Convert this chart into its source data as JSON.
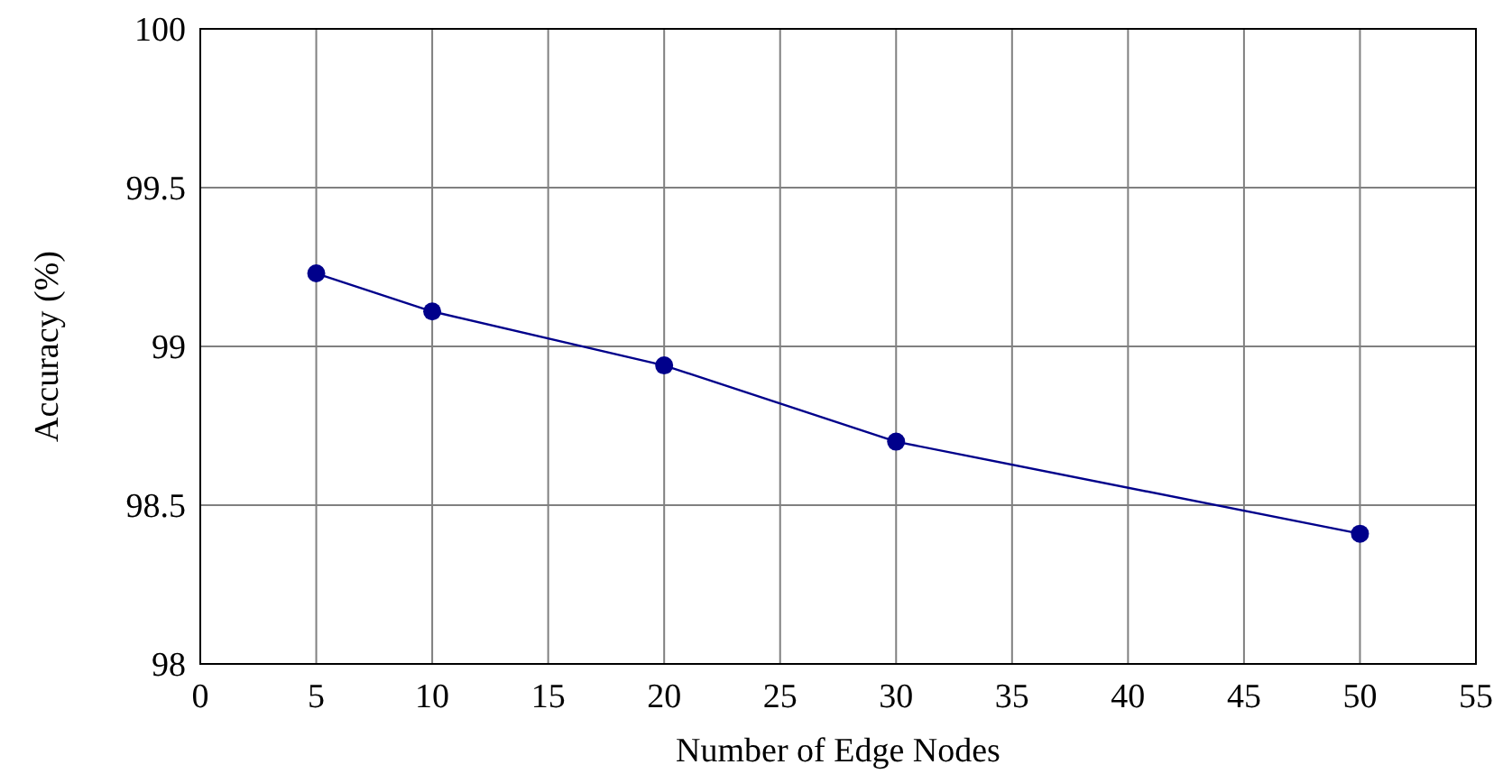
{
  "chart_data": {
    "type": "line",
    "xlabel": "Number of Edge Nodes",
    "ylabel": "Accuracy (%)",
    "x": [
      5,
      10,
      20,
      30,
      50
    ],
    "series": [
      {
        "color": "#00008b",
        "values": [
          99.23,
          99.11,
          98.94,
          98.7,
          98.41
        ]
      }
    ],
    "xlim": [
      0,
      55
    ],
    "xticks": [
      0,
      5,
      10,
      15,
      20,
      25,
      30,
      35,
      40,
      45,
      50,
      55
    ],
    "ylim": [
      98,
      100
    ],
    "yticks": [
      98,
      98.5,
      99,
      99.5,
      100
    ],
    "grid": true,
    "marker": "circle",
    "line_style": "solid"
  }
}
